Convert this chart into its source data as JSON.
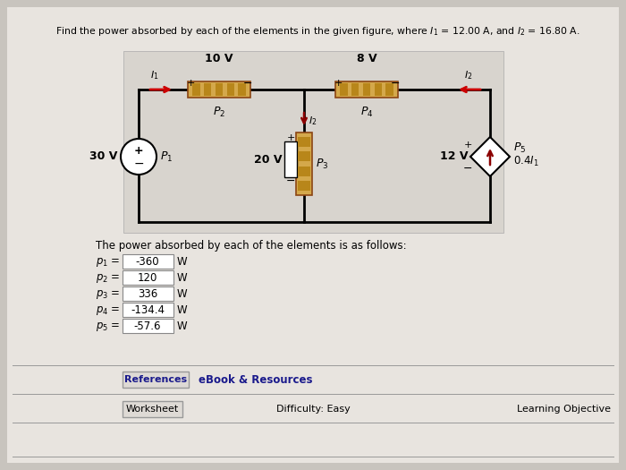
{
  "bg_color": "#c8c4be",
  "page_color": "#e8e4df",
  "title": "Find the power absorbed by each of the elements in the given figure, where $I_1$ = 12.00 A, and $I_2$ = 16.80 A.",
  "circuit_bg": "#d8d4ce",
  "resistor_fill": "#D4A84B",
  "resistor_edge": "#8B4513",
  "resistor_stripe": "#B8861A",
  "wire_color": "#CC0000",
  "wire_dark": "#8B0000",
  "results_header": "The power absorbed by each of the elements is as follows:",
  "results": [
    [
      "-360",
      "W"
    ],
    [
      "120",
      "W"
    ],
    [
      "336",
      "W"
    ],
    [
      "-134.4",
      "W"
    ],
    [
      "-57.6",
      "W"
    ]
  ],
  "refs_text": "References",
  "ebook_text": "eBook & Resources",
  "worksheet_text": "Worksheet",
  "difficulty_text": "Difficulty: Easy",
  "learning_text": "Learning Objective"
}
